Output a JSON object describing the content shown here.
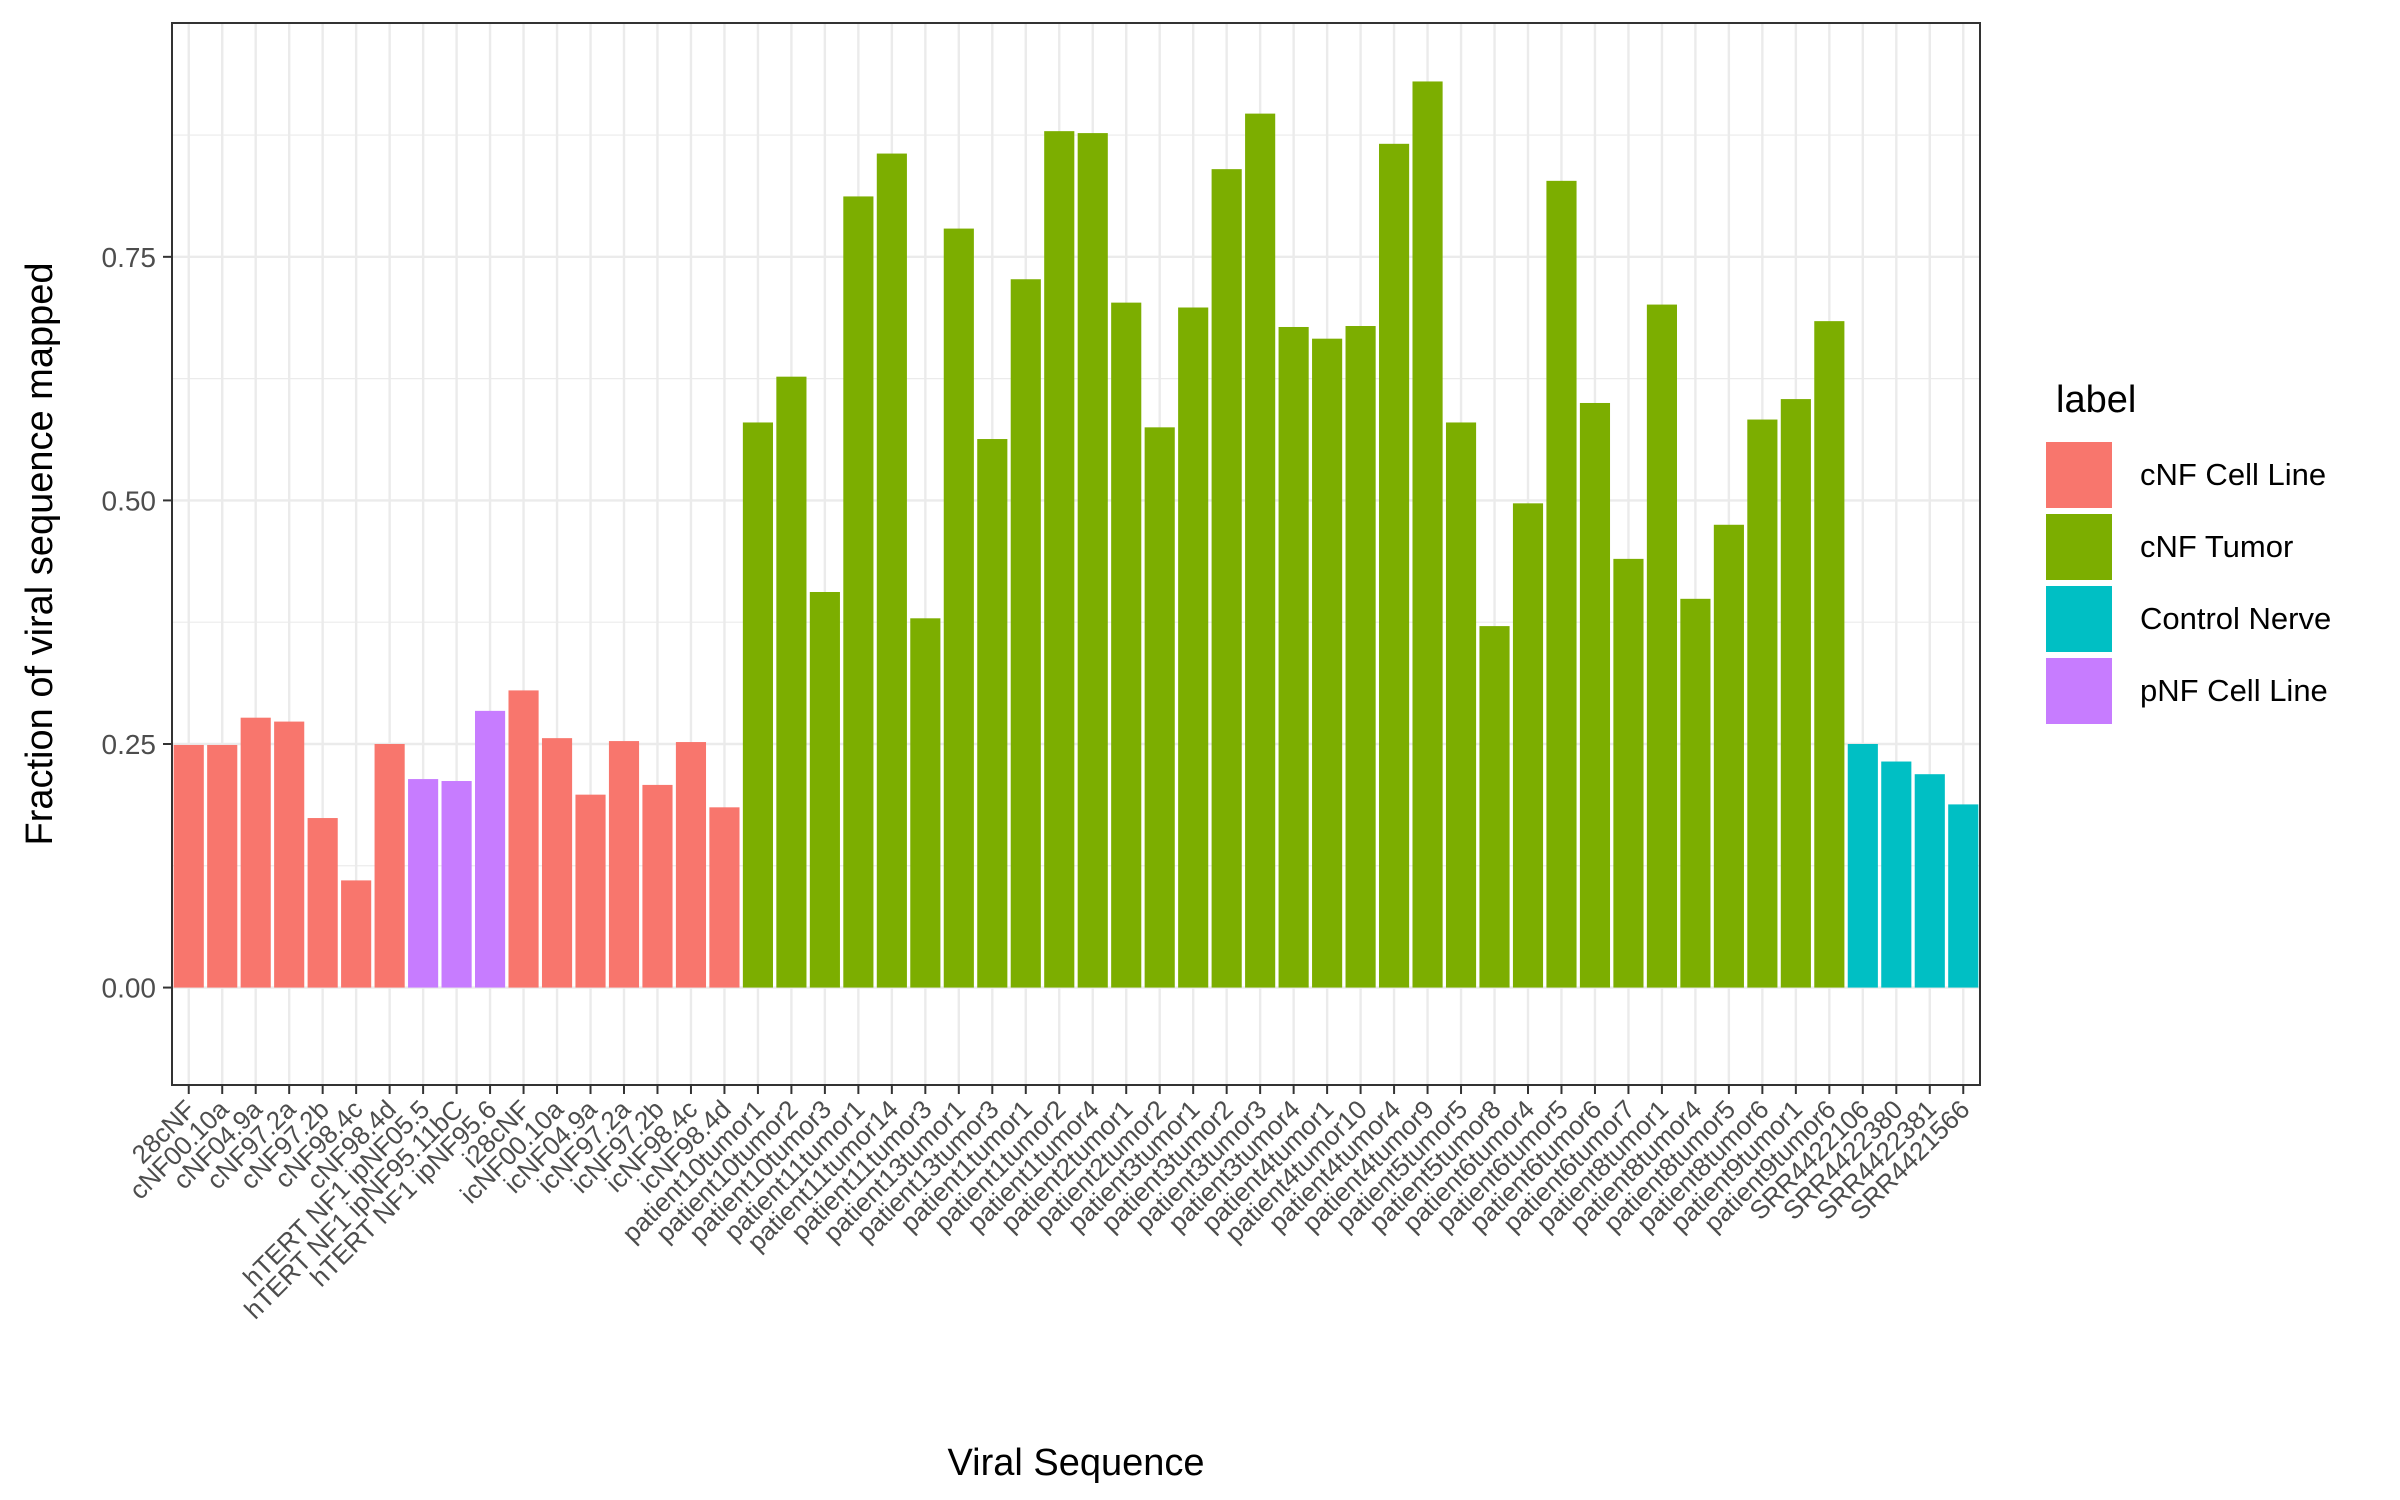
{
  "chart_data": {
    "type": "bar",
    "title": "",
    "xlabel": "Viral Sequence",
    "ylabel": "Fraction of viral sequence mapped",
    "ylim": [
      -0.1,
      0.99
    ],
    "yticks": [
      0.0,
      0.25,
      0.5,
      0.75
    ],
    "ytick_labels": [
      "0.00",
      "0.25",
      "0.50",
      "0.75"
    ],
    "grid": true,
    "legend_title": "label",
    "legend_position": "right",
    "legend": [
      {
        "name": "cNF Cell Line",
        "color": "#F8766D"
      },
      {
        "name": "cNF Tumor",
        "color": "#7CAE00"
      },
      {
        "name": "Control Nerve",
        "color": "#00BFC4"
      },
      {
        "name": "pNF Cell Line",
        "color": "#C77CFF"
      }
    ],
    "categories": [
      "28cNF",
      "cNF00.10a",
      "cNF04.9a",
      "cNF97.2a",
      "cNF97.2b",
      "cNF98.4c",
      "cNF98.4d",
      "hTERT NF1 ipNF05.5",
      "hTERT NF1 ipNF95.11bC",
      "hTERT NF1 ipNF95.6",
      "i28cNF",
      "icNF00.10a",
      "icNF04.9a",
      "icNF97.2a",
      "icNF97.2b",
      "icNF98.4c",
      "icNF98.4d",
      "patient10tumor1",
      "patient10tumor2",
      "patient10tumor3",
      "patient11tumor1",
      "patient11tumor14",
      "patient11tumor3",
      "patient13tumor1",
      "patient13tumor3",
      "patient1tumor1",
      "patient1tumor2",
      "patient1tumor4",
      "patient2tumor1",
      "patient2tumor2",
      "patient3tumor1",
      "patient3tumor2",
      "patient3tumor3",
      "patient3tumor4",
      "patient4tumor1",
      "patient4tumor10",
      "patient4tumor4",
      "patient4tumor9",
      "patient5tumor5",
      "patient5tumor8",
      "patient6tumor4",
      "patient6tumor5",
      "patient6tumor6",
      "patient6tumor7",
      "patient8tumor1",
      "patient8tumor4",
      "patient8tumor5",
      "patient8tumor6",
      "patient9tumor1",
      "patient9tumor6",
      "SRR4422106",
      "SRR4422380",
      "SRR4422381",
      "SRR4421566"
    ],
    "values": [
      0.249,
      0.249,
      0.277,
      0.273,
      0.174,
      0.11,
      0.25,
      0.214,
      0.212,
      0.284,
      0.305,
      0.256,
      0.198,
      0.253,
      0.208,
      0.252,
      0.185,
      0.58,
      0.627,
      0.406,
      0.812,
      0.856,
      0.379,
      0.779,
      0.563,
      0.727,
      0.879,
      0.877,
      0.703,
      0.575,
      0.698,
      0.84,
      0.897,
      0.678,
      0.666,
      0.679,
      0.866,
      0.93,
      0.58,
      0.371,
      0.497,
      0.828,
      0.6,
      0.44,
      0.701,
      0.399,
      0.475,
      0.583,
      0.604,
      0.684,
      0.25,
      0.232,
      0.219,
      0.188
    ],
    "groups": [
      "cNF Cell Line",
      "cNF Cell Line",
      "cNF Cell Line",
      "cNF Cell Line",
      "cNF Cell Line",
      "cNF Cell Line",
      "cNF Cell Line",
      "pNF Cell Line",
      "pNF Cell Line",
      "pNF Cell Line",
      "cNF Cell Line",
      "cNF Cell Line",
      "cNF Cell Line",
      "cNF Cell Line",
      "cNF Cell Line",
      "cNF Cell Line",
      "cNF Cell Line",
      "cNF Tumor",
      "cNF Tumor",
      "cNF Tumor",
      "cNF Tumor",
      "cNF Tumor",
      "cNF Tumor",
      "cNF Tumor",
      "cNF Tumor",
      "cNF Tumor",
      "cNF Tumor",
      "cNF Tumor",
      "cNF Tumor",
      "cNF Tumor",
      "cNF Tumor",
      "cNF Tumor",
      "cNF Tumor",
      "cNF Tumor",
      "cNF Tumor",
      "cNF Tumor",
      "cNF Tumor",
      "cNF Tumor",
      "cNF Tumor",
      "cNF Tumor",
      "cNF Tumor",
      "cNF Tumor",
      "cNF Tumor",
      "cNF Tumor",
      "cNF Tumor",
      "cNF Tumor",
      "cNF Tumor",
      "cNF Tumor",
      "cNF Tumor",
      "cNF Tumor",
      "Control Nerve",
      "Control Nerve",
      "Control Nerve",
      "Control Nerve"
    ]
  }
}
